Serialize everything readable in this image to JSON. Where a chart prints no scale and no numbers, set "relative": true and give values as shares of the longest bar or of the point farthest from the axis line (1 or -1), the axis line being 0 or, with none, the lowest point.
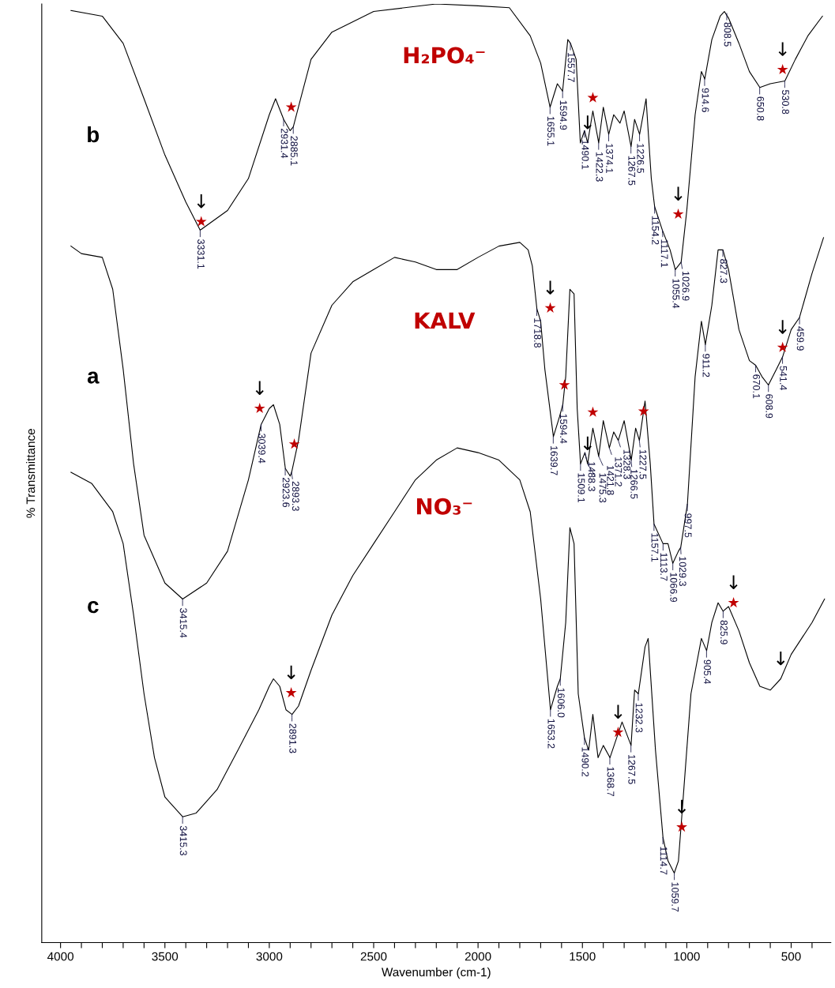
{
  "chart_data": {
    "type": "line",
    "relative": true,
    "xlabel": "Wavenumber (cm-1)",
    "ylabel": "% Transmittance",
    "xlim": [
      4090,
      310
    ],
    "xticks": [
      4000,
      {
        "value": 3900,
        "label": null
      },
      {
        "value": 3800,
        "label": null
      },
      {
        "value": 3700,
        "label": null
      },
      {
        "value": 3600,
        "label": null
      },
      3500,
      {
        "value": 3400,
        "label": null
      },
      {
        "value": 3300,
        "label": null
      },
      {
        "value": 3200,
        "label": null
      },
      {
        "value": 3100,
        "label": null
      },
      3000,
      {
        "value": 2900,
        "label": null
      },
      {
        "value": 2800,
        "label": null
      },
      {
        "value": 2700,
        "label": null
      },
      {
        "value": 2600,
        "label": null
      },
      2500,
      {
        "value": 2400,
        "label": null
      },
      {
        "value": 2300,
        "label": null
      },
      {
        "value": 2200,
        "label": null
      },
      {
        "value": 2100,
        "label": null
      },
      2000,
      {
        "value": 1900,
        "label": null
      },
      {
        "value": 1800,
        "label": null
      },
      {
        "value": 1700,
        "label": null
      },
      {
        "value": 1600,
        "label": null
      },
      1500,
      {
        "value": 1400,
        "label": null
      },
      {
        "value": 1300,
        "label": null
      },
      {
        "value": 1200,
        "label": null
      },
      {
        "value": 1100,
        "label": null
      },
      1000,
      {
        "value": 900,
        "label": null
      },
      {
        "value": 800,
        "label": null
      },
      {
        "value": 700,
        "label": null
      },
      {
        "value": 600,
        "label": null
      },
      500,
      {
        "value": 400,
        "label": null
      }
    ],
    "grid": false,
    "legend": false,
    "series": [
      {
        "name": "H₂PO₄⁻",
        "color": "#000000",
        "x": [
          3950,
          3800,
          3700,
          3600,
          3500,
          3400,
          3331,
          3200,
          3100,
          3000,
          2970,
          2931,
          2900,
          2885,
          2850,
          2800,
          2700,
          2500,
          2200,
          2000,
          1850,
          1750,
          1700,
          1655,
          1620,
          1595,
          1570,
          1557,
          1530,
          1510,
          1490,
          1475,
          1450,
          1422,
          1400,
          1374,
          1350,
          1320,
          1300,
          1267,
          1250,
          1226,
          1195,
          1170,
          1154,
          1117,
          1080,
          1055,
          1027,
          1000,
          960,
          930,
          914,
          880,
          840,
          820,
          800,
          750,
          700,
          650,
          600,
          530,
          480,
          420,
          350
        ],
        "values": [
          0.993,
          0.987,
          0.958,
          0.899,
          0.839,
          0.789,
          0.759,
          0.78,
          0.814,
          0.882,
          0.899,
          0.877,
          0.865,
          0.869,
          0.899,
          0.941,
          0.97,
          0.992,
          1.0,
          0.998,
          0.996,
          0.966,
          0.937,
          0.89,
          0.915,
          0.907,
          0.962,
          0.958,
          0.941,
          0.852,
          0.865,
          0.852,
          0.886,
          0.852,
          0.89,
          0.861,
          0.882,
          0.873,
          0.886,
          0.848,
          0.877,
          0.861,
          0.899,
          0.814,
          0.784,
          0.759,
          0.738,
          0.717,
          0.725,
          0.78,
          0.882,
          0.928,
          0.92,
          0.962,
          0.987,
          0.992,
          0.985,
          0.958,
          0.928,
          0.911,
          0.915,
          0.918,
          0.941,
          0.966,
          0.987
        ]
      },
      {
        "name": "KALV",
        "color": "#000000",
        "x": [
          3950,
          3900,
          3800,
          3750,
          3700,
          3650,
          3600,
          3500,
          3415,
          3300,
          3200,
          3100,
          3039,
          3000,
          2980,
          2950,
          2923,
          2900,
          2893,
          2860,
          2800,
          2700,
          2600,
          2500,
          2400,
          2300,
          2200,
          2100,
          2000,
          1900,
          1800,
          1760,
          1740,
          1718,
          1700,
          1680,
          1639,
          1610,
          1594,
          1580,
          1560,
          1540,
          1525,
          1509,
          1488,
          1475,
          1450,
          1422,
          1400,
          1371,
          1350,
          1328,
          1300,
          1266,
          1245,
          1227,
          1200,
          1175,
          1157,
          1114,
          1090,
          1067,
          1040,
          1029,
          997,
          960,
          930,
          911,
          880,
          850,
          827,
          800,
          750,
          700,
          670,
          640,
          609,
          570,
          541,
          500,
          460,
          400,
          345
        ],
        "values": [
          0.742,
          0.734,
          0.73,
          0.696,
          0.611,
          0.51,
          0.434,
          0.383,
          0.366,
          0.383,
          0.417,
          0.493,
          0.552,
          0.569,
          0.573,
          0.552,
          0.505,
          0.497,
          0.501,
          0.535,
          0.628,
          0.679,
          0.704,
          0.717,
          0.73,
          0.725,
          0.717,
          0.717,
          0.73,
          0.742,
          0.746,
          0.738,
          0.721,
          0.675,
          0.662,
          0.611,
          0.539,
          0.56,
          0.573,
          0.603,
          0.696,
          0.691,
          0.569,
          0.51,
          0.522,
          0.51,
          0.548,
          0.518,
          0.556,
          0.527,
          0.544,
          0.535,
          0.556,
          0.514,
          0.548,
          0.535,
          0.577,
          0.51,
          0.446,
          0.425,
          0.425,
          0.404,
          0.417,
          0.421,
          0.467,
          0.603,
          0.662,
          0.637,
          0.679,
          0.738,
          0.738,
          0.717,
          0.653,
          0.62,
          0.615,
          0.603,
          0.594,
          0.611,
          0.624,
          0.653,
          0.666,
          0.713,
          0.751
        ]
      },
      {
        "name": "NO₃⁻",
        "color": "#000000",
        "x": [
          3950,
          3850,
          3750,
          3700,
          3650,
          3600,
          3550,
          3500,
          3415,
          3350,
          3250,
          3150,
          3050,
          3000,
          2980,
          2950,
          2920,
          2891,
          2860,
          2800,
          2700,
          2600,
          2500,
          2400,
          2300,
          2200,
          2100,
          2000,
          1900,
          1800,
          1750,
          1700,
          1653,
          1620,
          1606,
          1580,
          1560,
          1540,
          1520,
          1490,
          1470,
          1450,
          1425,
          1400,
          1368,
          1330,
          1310,
          1267,
          1250,
          1232,
          1200,
          1185,
          1150,
          1114,
          1090,
          1060,
          1040,
          1020,
          980,
          930,
          905,
          880,
          850,
          826,
          800,
          750,
          700,
          650,
          600,
          550,
          500,
          450,
          400,
          340
        ],
        "values": [
          0.501,
          0.489,
          0.459,
          0.425,
          0.349,
          0.265,
          0.197,
          0.155,
          0.134,
          0.138,
          0.163,
          0.205,
          0.248,
          0.273,
          0.281,
          0.273,
          0.248,
          0.243,
          0.252,
          0.29,
          0.349,
          0.391,
          0.425,
          0.459,
          0.493,
          0.514,
          0.527,
          0.522,
          0.514,
          0.493,
          0.459,
          0.366,
          0.248,
          0.273,
          0.281,
          0.341,
          0.442,
          0.425,
          0.265,
          0.218,
          0.205,
          0.243,
          0.197,
          0.21,
          0.197,
          0.222,
          0.235,
          0.21,
          0.269,
          0.265,
          0.315,
          0.324,
          0.205,
          0.112,
          0.087,
          0.074,
          0.087,
          0.146,
          0.265,
          0.324,
          0.311,
          0.341,
          0.362,
          0.353,
          0.358,
          0.332,
          0.298,
          0.273,
          0.269,
          0.281,
          0.307,
          0.324,
          0.341,
          0.366
        ]
      },
      {
        "type": "scatter",
        "marker": "star",
        "color": "#c00000",
        "x": [
          3326,
          2895,
          1450,
          1041,
          541,
          3046,
          2880,
          1654,
          1586,
          1450,
          1207,
          541,
          2895,
          1329,
          1024,
          776
        ],
        "values": [
          0.768,
          0.89,
          0.9,
          0.776,
          0.93,
          0.569,
          0.531,
          0.676,
          0.594,
          0.565,
          0.566,
          0.634,
          0.266,
          0.224,
          0.123,
          0.362
        ]
      }
    ],
    "annotations": [
      "b",
      "a",
      "c",
      {
        "text": "↓",
        "x": 3326,
        "y": 0.768
      },
      {
        "text": "↓",
        "x": 1475,
        "y": 0.852
      },
      {
        "text": "↓",
        "x": 1041,
        "y": 0.776
      },
      {
        "text": "↓",
        "x": 541,
        "y": 0.93
      },
      {
        "text": "↓",
        "x": 3046,
        "y": 0.569
      },
      {
        "text": "↓",
        "x": 1654,
        "y": 0.676
      },
      {
        "text": "↓",
        "x": 1475,
        "y": 0.51
      },
      {
        "text": "↓",
        "x": 541,
        "y": 0.634
      },
      {
        "text": "↓",
        "x": 2895,
        "y": 0.266
      },
      {
        "text": "↓",
        "x": 1329,
        "y": 0.224
      },
      {
        "text": "↓",
        "x": 1024,
        "y": 0.123
      },
      {
        "text": "↓",
        "x": 776,
        "y": 0.362
      },
      {
        "text": "↓",
        "x": 550,
        "y": 0.281
      },
      {
        "text": "3331.1",
        "x": 3331.1,
        "y": 0.759
      },
      {
        "text": "2931.4",
        "x": 2931.4,
        "y": 0.877
      },
      {
        "text": "2885.1",
        "x": 2885.1,
        "y": 0.869
      },
      {
        "text": "1655.1",
        "x": 1655.1,
        "y": 0.89
      },
      {
        "text": "1594.9",
        "x": 1594.9,
        "y": 0.907
      },
      {
        "text": "1557.7",
        "x": 1557.7,
        "y": 0.958
      },
      {
        "text": "1490.1",
        "x": 1490.1,
        "y": 0.865
      },
      {
        "text": "1422.3",
        "x": 1422.3,
        "y": 0.852
      },
      {
        "text": "1374.1",
        "x": 1374.1,
        "y": 0.861
      },
      {
        "text": "1267.5",
        "x": 1267.5,
        "y": 0.848
      },
      {
        "text": "1226.5",
        "x": 1226.5,
        "y": 0.861
      },
      {
        "text": "1154.2",
        "x": 1154.2,
        "y": 0.784
      },
      {
        "text": "1117.1",
        "x": 1117.1,
        "y": 0.759
      },
      {
        "text": "1055.4",
        "x": 1055.4,
        "y": 0.717
      },
      {
        "text": "1026.9",
        "x": 1026.9,
        "y": 0.725
      },
      {
        "text": "914.6",
        "x": 914.6,
        "y": 0.92
      },
      {
        "text": "808.5",
        "x": 808.5,
        "y": 0.99
      },
      {
        "text": "650.8",
        "x": 650.8,
        "y": 0.911
      },
      {
        "text": "530.8",
        "x": 530.8,
        "y": 0.918
      },
      {
        "text": "3415.4",
        "x": 3415.4,
        "y": 0.366
      },
      {
        "text": "3039.4",
        "x": 3039.4,
        "y": 0.552
      },
      {
        "text": "2923.6",
        "x": 2923.6,
        "y": 0.505
      },
      {
        "text": "2893.3",
        "x": 2893.3,
        "y": 0.501
      },
      {
        "text": "1718.8",
        "x": 1718.8,
        "y": 0.675
      },
      {
        "text": "1639.7",
        "x": 1639.7,
        "y": 0.539
      },
      {
        "text": "1594.4",
        "x": 1594.4,
        "y": 0.573
      },
      {
        "text": "1509.1",
        "x": 1509.1,
        "y": 0.51
      },
      {
        "text": "1488.3",
        "x": 1488.3,
        "y": 0.522
      },
      {
        "text": "1475.3",
        "x": 1475.3,
        "y": 0.51
      },
      {
        "text": "1421.8",
        "x": 1421.8,
        "y": 0.518
      },
      {
        "text": "1371.2",
        "x": 1371.2,
        "y": 0.527
      },
      {
        "text": "1328.3",
        "x": 1328.3,
        "y": 0.535
      },
      {
        "text": "1266.5",
        "x": 1266.5,
        "y": 0.514
      },
      {
        "text": "1227.5",
        "x": 1227.5,
        "y": 0.535
      },
      {
        "text": "1157.1",
        "x": 1157.1,
        "y": 0.446
      },
      {
        "text": "1113.7",
        "x": 1113.7,
        "y": 0.425
      },
      {
        "text": "1066.9",
        "x": 1066.9,
        "y": 0.404
      },
      {
        "text": "1029.3",
        "x": 1029.3,
        "y": 0.421
      },
      {
        "text": "997.5",
        "x": 997.5,
        "y": 0.467
      },
      {
        "text": "911.2",
        "x": 911.2,
        "y": 0.637
      },
      {
        "text": "827.3",
        "x": 827.3,
        "y": 0.738
      },
      {
        "text": "670.1",
        "x": 670.1,
        "y": 0.615
      },
      {
        "text": "608.9",
        "x": 608.9,
        "y": 0.594
      },
      {
        "text": "541.4",
        "x": 541.4,
        "y": 0.624
      },
      {
        "text": "459.9",
        "x": 459.9,
        "y": 0.666
      },
      {
        "text": "3415.3",
        "x": 3415.3,
        "y": 0.134
      },
      {
        "text": "2891.3",
        "x": 2891.3,
        "y": 0.243
      },
      {
        "text": "1653.2",
        "x": 1653.2,
        "y": 0.248
      },
      {
        "text": "1606.0",
        "x": 1606.0,
        "y": 0.281
      },
      {
        "text": "1490.2",
        "x": 1490.2,
        "y": 0.218
      },
      {
        "text": "1368.7",
        "x": 1368.7,
        "y": 0.197
      },
      {
        "text": "1267.5",
        "x": 1267.5,
        "y": 0.21
      },
      {
        "text": "1232.3",
        "x": 1232.3,
        "y": 0.265
      },
      {
        "text": "1114.7",
        "x": 1114.7,
        "y": 0.112
      },
      {
        "text": "1059.7",
        "x": 1059.7,
        "y": 0.074
      },
      {
        "text": "905.4",
        "x": 905.4,
        "y": 0.311
      },
      {
        "text": "825.9",
        "x": 825.9,
        "y": 0.353
      }
    ]
  }
}
